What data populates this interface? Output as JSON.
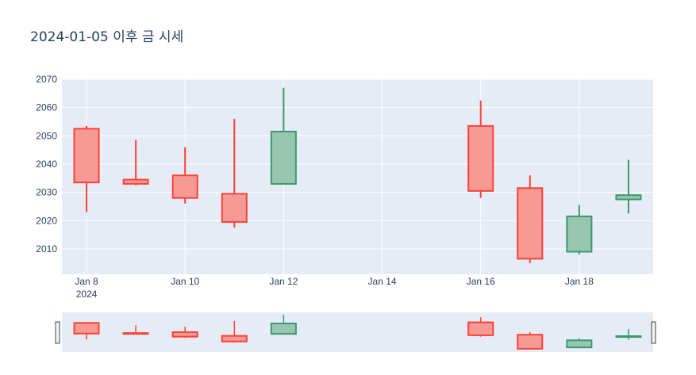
{
  "colors": {
    "plot_bg": "#e5ecf6",
    "grid": "#ffffff",
    "increasing_line": "#3d9970",
    "increasing_fill": "#98c6b1",
    "decreasing_line": "#ff4136",
    "decreasing_fill": "#f59a95",
    "text": "#2a3f5f"
  },
  "chart_data": {
    "type": "candlestick",
    "title": "2024-01-05 이후 금 시세",
    "xlabel": "",
    "ylabel": "",
    "ylim": [
      2001,
      2070
    ],
    "x_range": [
      "2024-01-07T12:00",
      "2024-01-19T12:00"
    ],
    "y_ticks": [
      2010,
      2020,
      2030,
      2040,
      2050,
      2060,
      2070
    ],
    "x_ticks": [
      {
        "date": "2024-01-08",
        "label": "Jan 8",
        "sublabel": "2024"
      },
      {
        "date": "2024-01-10",
        "label": "Jan 10"
      },
      {
        "date": "2024-01-12",
        "label": "Jan 12"
      },
      {
        "date": "2024-01-14",
        "label": "Jan 14"
      },
      {
        "date": "2024-01-16",
        "label": "Jan 16"
      },
      {
        "date": "2024-01-18",
        "label": "Jan 18"
      }
    ],
    "grid": true,
    "rangeslider": true,
    "candles": [
      {
        "date": "2024-01-08",
        "open": 2052.5,
        "high": 2053.5,
        "low": 2023.0,
        "close": 2033.5
      },
      {
        "date": "2024-01-09",
        "open": 2034.5,
        "high": 2048.5,
        "low": 2032.5,
        "close": 2033.0
      },
      {
        "date": "2024-01-10",
        "open": 2036.0,
        "high": 2046.0,
        "low": 2026.0,
        "close": 2028.0
      },
      {
        "date": "2024-01-11",
        "open": 2029.5,
        "high": 2056.0,
        "low": 2017.5,
        "close": 2019.5
      },
      {
        "date": "2024-01-12",
        "open": 2033.0,
        "high": 2067.0,
        "low": 2033.0,
        "close": 2051.5
      },
      {
        "date": "2024-01-16",
        "open": 2053.5,
        "high": 2062.5,
        "low": 2028.0,
        "close": 2030.5
      },
      {
        "date": "2024-01-17",
        "open": 2031.5,
        "high": 2036.0,
        "low": 2005.0,
        "close": 2006.5
      },
      {
        "date": "2024-01-18",
        "open": 2009.0,
        "high": 2025.5,
        "low": 2008.0,
        "close": 2021.5
      },
      {
        "date": "2024-01-19",
        "open": 2027.5,
        "high": 2041.5,
        "low": 2022.5,
        "close": 2029.0
      }
    ]
  }
}
